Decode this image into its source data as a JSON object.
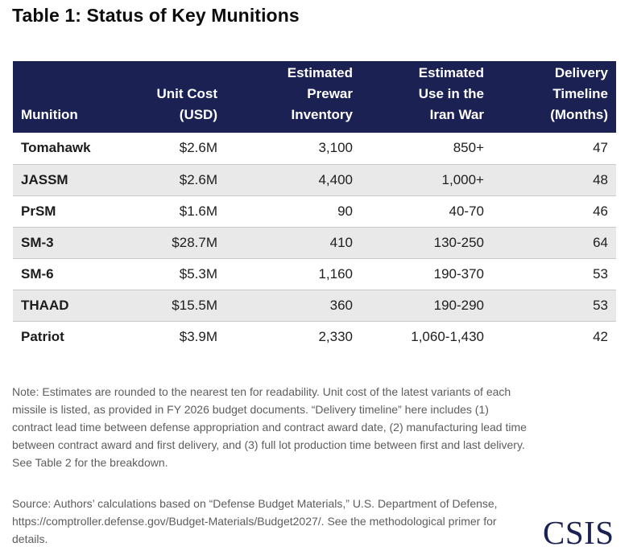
{
  "title": "Table 1: Status of Key Munitions",
  "table": {
    "headers": [
      [
        "Munition"
      ],
      [
        "Unit Cost",
        "(USD)"
      ],
      [
        "Estimated",
        "Prewar",
        "Inventory"
      ],
      [
        "Estimated",
        "Use in the",
        "Iran War"
      ],
      [
        "Delivery",
        "Timeline",
        "(Months)"
      ]
    ],
    "rows": [
      {
        "munition": "Tomahawk",
        "unit_cost": "$2.6M",
        "inventory": "3,100",
        "use": "850+",
        "timeline": "47"
      },
      {
        "munition": "JASSM",
        "unit_cost": "$2.6M",
        "inventory": "4,400",
        "use": "1,000+",
        "timeline": "48"
      },
      {
        "munition": "PrSM",
        "unit_cost": "$1.6M",
        "inventory": "90",
        "use": "40-70",
        "timeline": "46"
      },
      {
        "munition": "SM-3",
        "unit_cost": "$28.7M",
        "inventory": "410",
        "use": "130-250",
        "timeline": "64"
      },
      {
        "munition": "SM-6",
        "unit_cost": "$5.3M",
        "inventory": "1,160",
        "use": "190-370",
        "timeline": "53"
      },
      {
        "munition": "THAAD",
        "unit_cost": "$15.5M",
        "inventory": "360",
        "use": "190-290",
        "timeline": "53"
      },
      {
        "munition": "Patriot",
        "unit_cost": "$3.9M",
        "inventory": "2,330",
        "use": "1,060-1,430",
        "timeline": "42"
      }
    ]
  },
  "note": "Note: Estimates are rounded to the nearest ten for readability. Unit cost of the latest variants of each missile is listed, as provided in FY 2026 budget documents. “Delivery timeline” here includes (1) contract lead time between defense appropriation and contract award date, (2) manufacturing lead time between contract award and first delivery, and (3) full lot production time between first and last delivery. See Table 2 for the breakdown.",
  "source": "Source: Authors’ calculations based on “Defense Budget Materials,” U.S. Department of Defense, https://comptroller.defense.gov/Budget-Materials/Budget2027/. See the methodological primer for details.",
  "logo": "CSIS",
  "colors": {
    "header_bg": "#1b2153",
    "alt_row_bg": "#e9e9e9",
    "logo": "#1b2153"
  }
}
